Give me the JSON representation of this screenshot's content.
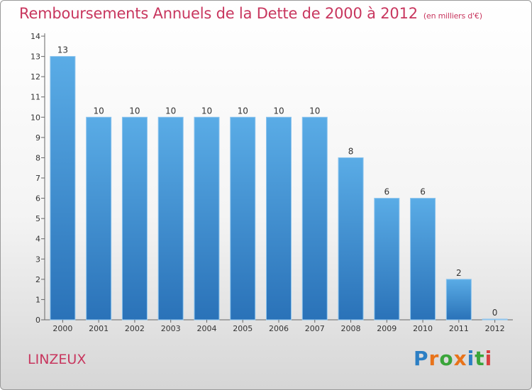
{
  "chart_data": {
    "type": "bar",
    "title": "Remboursements Annuels de la Dette de 2000 à 2012",
    "subtitle": "(en milliers d'€)",
    "categories": [
      "2000",
      "2001",
      "2002",
      "2003",
      "2004",
      "2005",
      "2006",
      "2007",
      "2008",
      "2009",
      "2010",
      "2011",
      "2012"
    ],
    "values": [
      13,
      10,
      10,
      10,
      10,
      10,
      10,
      10,
      8,
      6,
      6,
      2,
      0
    ],
    "ylim": [
      0,
      14
    ],
    "yticks": [
      0,
      1,
      2,
      3,
      4,
      5,
      6,
      7,
      8,
      9,
      10,
      11,
      12,
      13,
      14
    ],
    "bar_color": "#3d8fd4",
    "grid": false,
    "legend": "none"
  },
  "commune": "LINZEUX",
  "logo": {
    "letters": [
      "P",
      "r",
      "o",
      "x",
      "i",
      "t",
      "i"
    ],
    "colors": [
      "#2c7fc4",
      "#e8731a",
      "#3aa53a",
      "#e8731a",
      "#2c7fc4",
      "#3aa53a",
      "#d94040"
    ]
  }
}
